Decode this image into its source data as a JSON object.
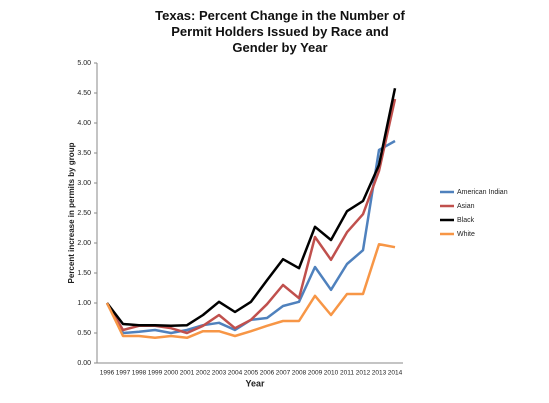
{
  "chart_data": {
    "type": "line",
    "title": "Texas: Percent Change in the Number of Permit Holders Issued by Race and Gender by Year",
    "x_label": "Year",
    "y_label": "Percent increase in permits by group",
    "categories": [
      "1996",
      "1997",
      "1998",
      "1999",
      "2000",
      "2001",
      "2002",
      "2003",
      "2004",
      "2005",
      "2006",
      "2007",
      "2008",
      "2009",
      "2010",
      "2011",
      "2012",
      "2013",
      "2014"
    ],
    "series": [
      {
        "name": "American Indian",
        "color": "#4f81bd",
        "values": [
          1.0,
          0.5,
          0.52,
          0.55,
          0.5,
          0.55,
          0.63,
          0.67,
          0.55,
          0.72,
          0.75,
          0.95,
          1.02,
          1.6,
          1.22,
          1.65,
          1.88,
          3.55,
          3.7
        ]
      },
      {
        "name": "Asian",
        "color": "#c0504d",
        "values": [
          1.0,
          0.55,
          0.62,
          0.62,
          0.58,
          0.5,
          0.62,
          0.8,
          0.58,
          0.72,
          0.98,
          1.3,
          1.08,
          2.1,
          1.72,
          2.18,
          2.48,
          3.2,
          4.4
        ]
      },
      {
        "name": "Black",
        "color": "#000000",
        "values": [
          1.0,
          0.65,
          0.63,
          0.63,
          0.62,
          0.63,
          0.8,
          1.02,
          0.85,
          1.02,
          1.38,
          1.73,
          1.58,
          2.27,
          2.05,
          2.53,
          2.7,
          3.3,
          4.58
        ]
      },
      {
        "name": "White",
        "color": "#f79646",
        "values": [
          1.0,
          0.45,
          0.45,
          0.42,
          0.45,
          0.42,
          0.53,
          0.53,
          0.45,
          0.53,
          0.62,
          0.7,
          0.7,
          1.12,
          0.8,
          1.15,
          1.15,
          1.98,
          1.93
        ]
      }
    ],
    "ylim": [
      0,
      5
    ],
    "yticks": [
      {
        "value": 0,
        "label": "0.00"
      },
      {
        "value": 0.5,
        "label": "0.50"
      },
      {
        "value": 1,
        "label": "1.00"
      },
      {
        "value": 1.5,
        "label": "1.50"
      },
      {
        "value": 2,
        "label": "2.00"
      },
      {
        "value": 2.5,
        "label": "2.50"
      },
      {
        "value": 3,
        "label": "3.00"
      },
      {
        "value": 3.5,
        "label": "3.50"
      },
      {
        "value": 4,
        "label": "4.00"
      },
      {
        "value": 4.5,
        "label": "4.50"
      },
      {
        "value": 5,
        "label": "5.00"
      }
    ],
    "legend": "right"
  }
}
